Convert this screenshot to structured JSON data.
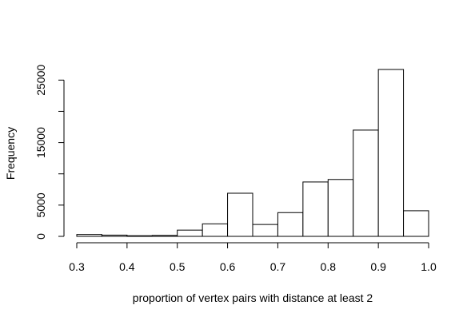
{
  "chart_data": {
    "type": "bar",
    "title": "",
    "xlabel": "proportion of vertex pairs with distance at least 2",
    "ylabel": "Frequency",
    "bin_edges": [
      0.3,
      0.35,
      0.4,
      0.45,
      0.5,
      0.55,
      0.6,
      0.65,
      0.7,
      0.75,
      0.8,
      0.85,
      0.9,
      0.95,
      1.0
    ],
    "values": [
      300,
      200,
      100,
      150,
      1000,
      2000,
      6900,
      1900,
      3800,
      8700,
      9100,
      17000,
      26700,
      4100
    ],
    "xlim": [
      0.3,
      1.0
    ],
    "ylim": [
      0,
      26700
    ],
    "x_ticks": [
      0.3,
      0.4,
      0.5,
      0.6,
      0.7,
      0.8,
      0.9,
      1.0
    ],
    "x_tick_labels": [
      "0.3",
      "0.4",
      "0.5",
      "0.6",
      "0.7",
      "0.8",
      "0.9",
      "1.0"
    ],
    "y_ticks": [
      0,
      5000,
      10000,
      15000,
      20000,
      25000
    ],
    "y_tick_labels": [
      "0",
      "5000",
      "",
      "15000",
      "",
      "25000"
    ],
    "grid": false,
    "colors": {
      "bar_fill": "#ffffff",
      "bar_stroke": "#000000"
    }
  }
}
